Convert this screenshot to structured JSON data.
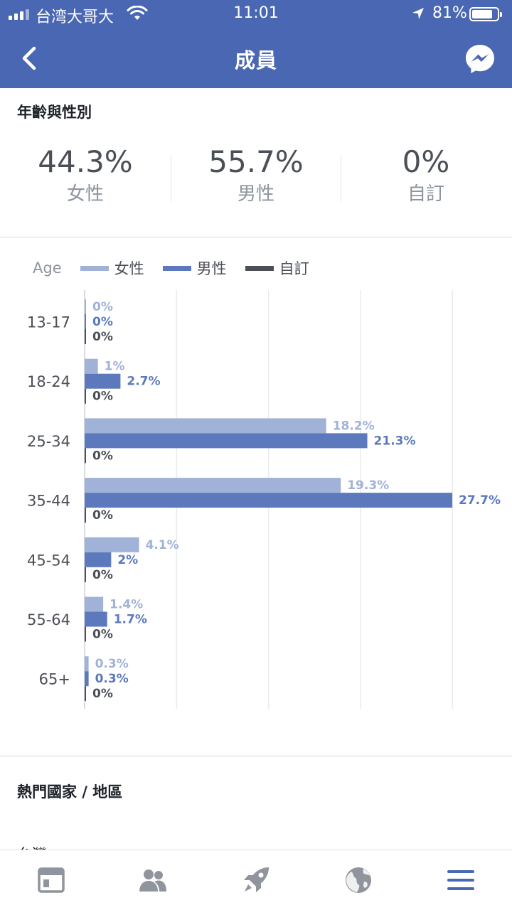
{
  "status": {
    "carrier": "台湾大哥大",
    "time": "11:01",
    "battery_pct": "81%",
    "battery_level": 0.81
  },
  "nav": {
    "title": "成員"
  },
  "age_gender": {
    "title": "年齡與性別",
    "stats": [
      {
        "value": "44.3%",
        "label": "女性"
      },
      {
        "value": "55.7%",
        "label": "男性"
      },
      {
        "value": "0%",
        "label": "自訂"
      }
    ]
  },
  "legend": {
    "axis_label": "Age",
    "items": [
      {
        "name": "女性",
        "color": "#a0b2d8"
      },
      {
        "name": "男性",
        "color": "#5b79bc"
      },
      {
        "name": "自訂",
        "color": "#4b4f56"
      }
    ]
  },
  "chart_data": {
    "type": "bar",
    "orientation": "horizontal",
    "categories": [
      "13-17",
      "18-24",
      "25-34",
      "35-44",
      "45-54",
      "55-64",
      "65+"
    ],
    "series": [
      {
        "name": "女性",
        "color": "#a0b2d8",
        "values": [
          0,
          1,
          18.2,
          19.3,
          4.1,
          1.4,
          0.3
        ],
        "labels": [
          "0%",
          "1%",
          "18.2%",
          "19.3%",
          "4.1%",
          "1.4%",
          "0.3%"
        ]
      },
      {
        "name": "男性",
        "color": "#5b79bc",
        "values": [
          0,
          2.7,
          21.3,
          27.7,
          2,
          1.7,
          0.3
        ],
        "labels": [
          "0%",
          "2.7%",
          "21.3%",
          "27.7%",
          "2%",
          "1.7%",
          "0.3%"
        ]
      },
      {
        "name": "自訂",
        "color": "#4b4f56",
        "values": [
          0,
          0,
          0,
          0,
          0,
          0,
          0
        ],
        "labels": [
          "0%",
          "0%",
          "0%",
          "0%",
          "0%",
          "0%",
          "0%"
        ]
      }
    ],
    "xlim": [
      0,
      27.7
    ],
    "grid": true,
    "legend_position": "top"
  },
  "countries": {
    "title": "熱門國家 / 地區",
    "first_item_peek": "台灣"
  },
  "tabbar": {
    "items": [
      "feed-icon",
      "groups-icon",
      "rocket-icon",
      "globe-icon",
      "menu-icon"
    ],
    "active": "menu-icon",
    "active_color": "#4967b2",
    "inactive_color": "#90949c"
  }
}
